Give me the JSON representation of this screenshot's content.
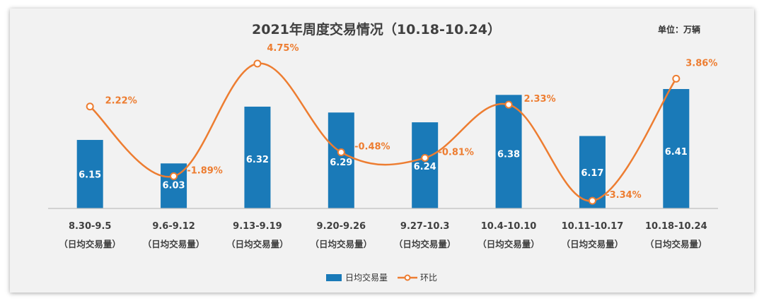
{
  "chart_data": {
    "type": "bar",
    "title": "2021年周度交易情况（10.18-10.24）",
    "unit": "单位：万辆",
    "categories": [
      [
        "8.30-9.5",
        "（日均交易量）"
      ],
      [
        "9.6-9.12",
        "（日均交易量）"
      ],
      [
        "9.13-9.19",
        "（日均交易量）"
      ],
      [
        "9.20-9.26",
        "（日均交易量）"
      ],
      [
        "9.27-10.3",
        "（日均交易量）"
      ],
      [
        "10.4-10.10",
        "（日均交易量）"
      ],
      [
        "10.11-10.17",
        "（日均交易量）"
      ],
      [
        "10.18-10.24",
        "（日均交易量）"
      ]
    ],
    "series": [
      {
        "name": "日均交易量",
        "type": "bar",
        "values": [
          6.15,
          6.03,
          6.32,
          6.29,
          6.24,
          6.38,
          6.17,
          6.41
        ],
        "labels": [
          "6.15",
          "6.03",
          "6.32",
          "6.29",
          "6.24",
          "6.38",
          "6.17",
          "6.41"
        ]
      },
      {
        "name": "环比",
        "type": "line",
        "values": [
          2.22,
          -1.89,
          4.75,
          -0.48,
          -0.81,
          2.33,
          -3.34,
          3.86
        ],
        "labels": [
          "2.22%",
          "-1.89%",
          "4.75%",
          "-0.48%",
          "-0.81%",
          "2.33%",
          "-3.34%",
          "3.86%"
        ]
      }
    ],
    "bar_axis_range": [
      5.8,
      6.5
    ],
    "line_axis_range": [
      -4,
      6
    ],
    "grid": false,
    "legend_position": "bottom",
    "colors": {
      "bar": "#1a7ab8",
      "line": "#ed7d31",
      "title": "#404040",
      "axis_text": "#404040"
    }
  }
}
